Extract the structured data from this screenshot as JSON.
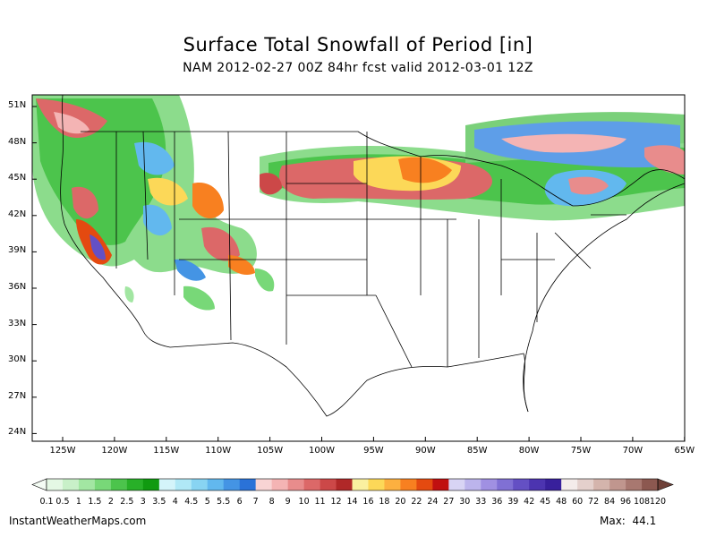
{
  "title": "Surface Total Snowfall of Period [in]",
  "subtitle": "NAM 2012-02-27 00Z 84hr fcst valid 2012-03-01 12Z",
  "lat_labels": [
    "51N",
    "48N",
    "45N",
    "42N",
    "39N",
    "36N",
    "33N",
    "30N",
    "27N",
    "24N"
  ],
  "lon_labels": [
    "125W",
    "120W",
    "115W",
    "110W",
    "105W",
    "100W",
    "95W",
    "90W",
    "85W",
    "80W",
    "75W",
    "70W",
    "65W"
  ],
  "colorbar": {
    "labels": [
      "0.1",
      "0.5",
      "1",
      "1.5",
      "2",
      "2.5",
      "3",
      "3.5",
      "4",
      "4.5",
      "5",
      "5.5",
      "6",
      "7",
      "8",
      "9",
      "10",
      "11",
      "12",
      "14",
      "16",
      "18",
      "20",
      "22",
      "24",
      "27",
      "30",
      "33",
      "36",
      "39",
      "42",
      "45",
      "48",
      "60",
      "72",
      "84",
      "96",
      "108",
      "120"
    ],
    "colors": [
      "#e4f8e4",
      "#c8f0c8",
      "#a2e6a2",
      "#78d878",
      "#4cc44c",
      "#28b028",
      "#109a10",
      "#d4f4fa",
      "#b0e8f6",
      "#88d4f2",
      "#62b8ee",
      "#4494e4",
      "#2a72d8",
      "#f8d4d4",
      "#f4b4b4",
      "#e88c8c",
      "#dc6868",
      "#cc4848",
      "#b02828",
      "#faf0a0",
      "#fcd858",
      "#fcb040",
      "#f88020",
      "#e44a10",
      "#c01010",
      "#d8d4f4",
      "#bcb4ec",
      "#a090e2",
      "#8070d4",
      "#6450c4",
      "#4c34b0",
      "#38209c",
      "#f4ecea",
      "#e4d0cc",
      "#d4b4ac",
      "#c0968e",
      "#a87870",
      "#8c5850"
    ]
  },
  "footer": {
    "site": "InstantWeatherMaps.com",
    "max_label": "Max:",
    "max_value": "44.1"
  }
}
